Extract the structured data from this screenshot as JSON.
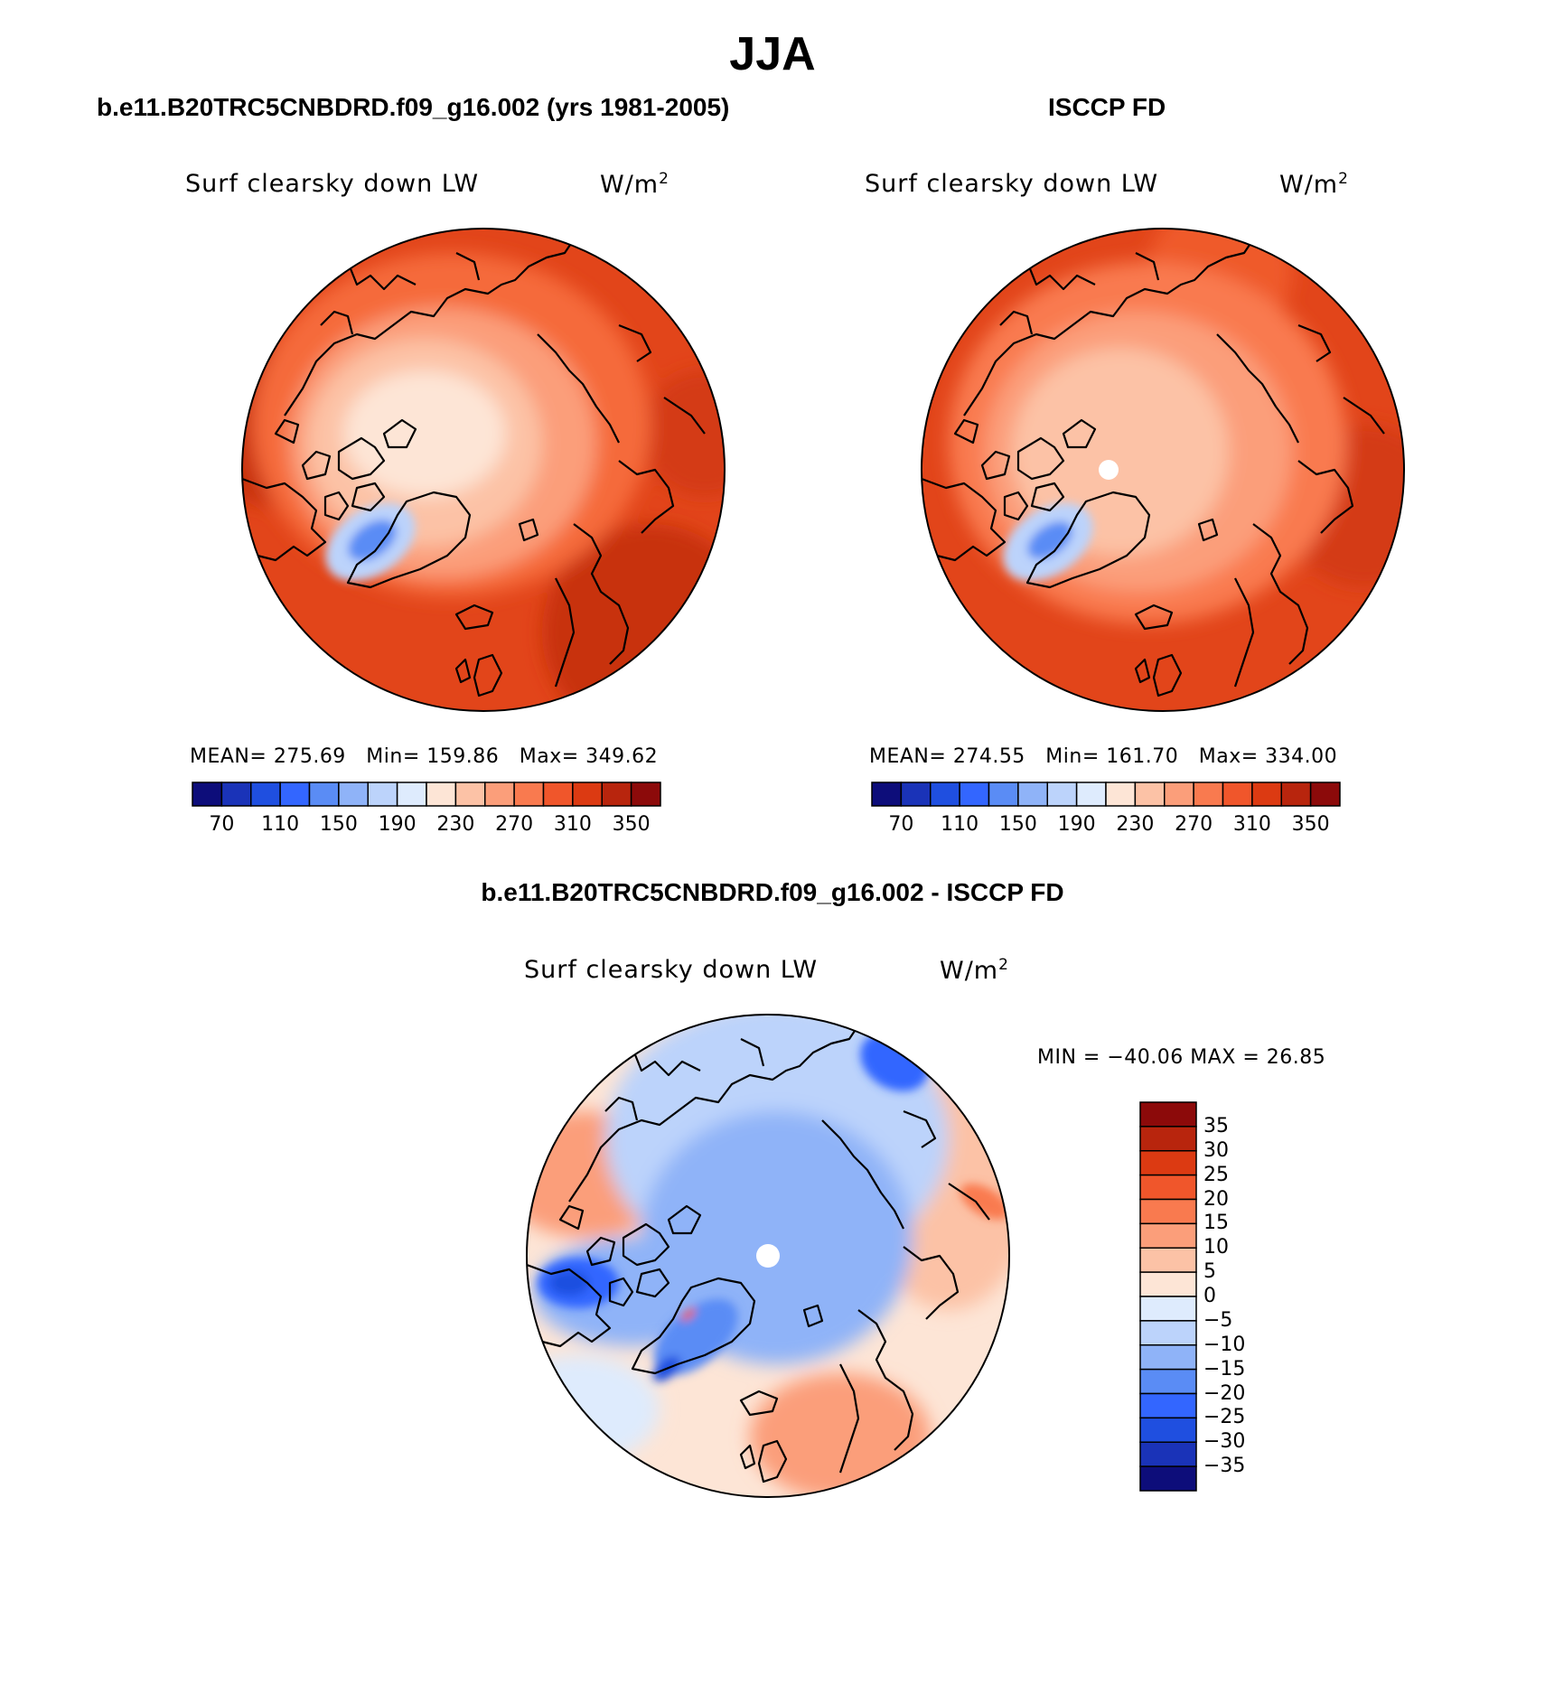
{
  "figure": {
    "main_title": "JJA",
    "left_panel_title": "b.e11.B20TRC5CNBDRD.f09_g16.002 (yrs 1981-2005)",
    "right_panel_title": "ISCCP FD",
    "diff_panel_title": "b.e11.B20TRC5CNBDRD.f09_g16.002 - ISCCP FD"
  },
  "panels": {
    "model": {
      "variable": "Surf clearsky down LW",
      "units": "W/m",
      "units_sup": "2",
      "mean_label": "MEAN=",
      "mean": "275.69",
      "min_label": "Min=",
      "min": "159.86",
      "max_label": "Max=",
      "max": "349.62"
    },
    "obs": {
      "variable": "Surf clearsky down LW",
      "units": "W/m",
      "units_sup": "2",
      "mean_label": "MEAN=",
      "mean": "274.55",
      "min_label": "Min=",
      "min": "161.70",
      "max_label": "Max=",
      "max": "334.00"
    },
    "diff": {
      "variable": "Surf clearsky down LW",
      "units": "W/m",
      "units_sup": "2",
      "minmax_text": "MIN = −40.06 MAX =  26.85"
    }
  },
  "colorbars": {
    "absolute": {
      "labels": [
        "70",
        "110",
        "150",
        "190",
        "230",
        "270",
        "310",
        "350"
      ],
      "colors": [
        "#0d0d7a",
        "#1a33b8",
        "#1f4fe0",
        "#3366ff",
        "#5a8cf5",
        "#8fb3f8",
        "#bcd3fb",
        "#deebfd",
        "#fde5d6",
        "#fcc2a6",
        "#fb9e7a",
        "#f97a4f",
        "#f0562b",
        "#dc3a12",
        "#b8250d",
        "#8c0a0a"
      ]
    },
    "difference": {
      "labels": [
        "35",
        "30",
        "25",
        "20",
        "15",
        "10",
        "5",
        "0",
        "−5",
        "−10",
        "−15",
        "−20",
        "−25",
        "−30",
        "−35"
      ],
      "colors": [
        "#8c0a0a",
        "#b8250d",
        "#dc3a12",
        "#f0562b",
        "#f97a4f",
        "#fb9e7a",
        "#fcc2a6",
        "#fde5d6",
        "#deebfd",
        "#bcd3fb",
        "#8fb3f8",
        "#5a8cf5",
        "#3366ff",
        "#1f4fe0",
        "#1a33b8",
        "#0d0d7a"
      ]
    }
  }
}
